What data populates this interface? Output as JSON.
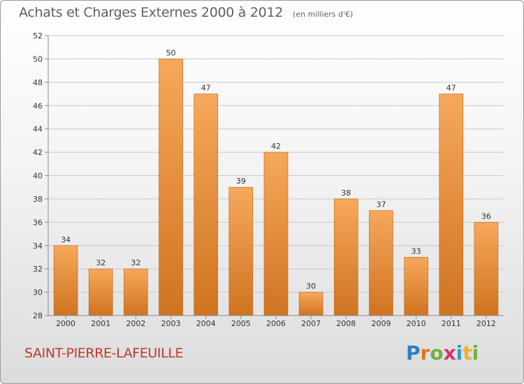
{
  "header": {
    "title": "Achats et Charges Externes 2000 à 2012",
    "subtitle": "(en milliers d'€)"
  },
  "footer": {
    "place": "SAINT-PIERRE-LAFEUILLE"
  },
  "logo": {
    "letters": [
      "P",
      "r",
      "o",
      "x",
      "i",
      "t",
      "i"
    ],
    "colors": [
      "#2f7fc1",
      "#e8731a",
      "#6cb33f",
      "#d6336c",
      "#2f9fc1",
      "#f2b21a",
      "#6cb33f"
    ]
  },
  "colors": {
    "bar_top": "#f7a85a",
    "bar_bottom": "#cf7421",
    "bar_edge": "#b8631a",
    "grid": "#c8c8c8",
    "axis": "#8a8a8a"
  },
  "chart_data": {
    "type": "bar",
    "title": "Achats et Charges Externes 2000 à 2012",
    "subtitle": "(en milliers d'€)",
    "categories": [
      "2000",
      "2001",
      "2002",
      "2003",
      "2004",
      "2005",
      "2006",
      "2007",
      "2008",
      "2009",
      "2010",
      "2011",
      "2012"
    ],
    "values": [
      34,
      32,
      32,
      50,
      47,
      39,
      42,
      30,
      38,
      37,
      33,
      47,
      36
    ],
    "ylim": [
      28,
      52
    ],
    "yticks": [
      28,
      30,
      32,
      34,
      36,
      38,
      40,
      42,
      44,
      46,
      48,
      50,
      52
    ],
    "grid": true,
    "legend": "none"
  }
}
